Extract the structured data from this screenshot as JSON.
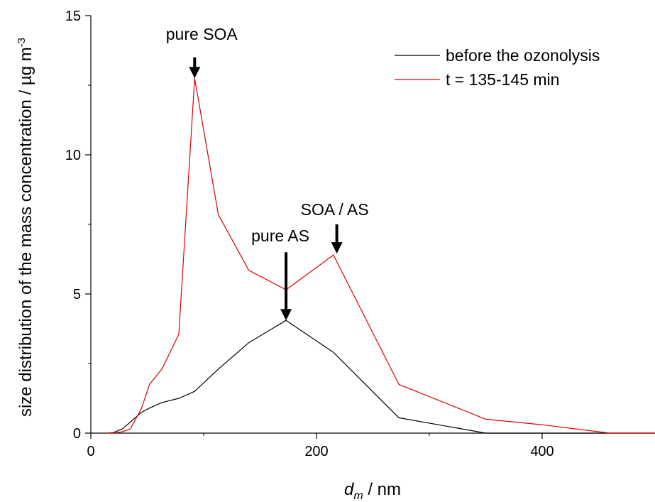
{
  "chart_data": {
    "type": "line",
    "title": "",
    "xlabel": {
      "main": "d",
      "sub": "m",
      "rest": " / nm"
    },
    "ylabel": {
      "main": "size distribution of the mass concentration / µg m",
      "sup": "-3"
    },
    "xlim": [
      0,
      500
    ],
    "ylim": [
      0,
      15
    ],
    "xticks": [
      0,
      200,
      400
    ],
    "yticks": [
      0,
      5,
      10,
      15
    ],
    "grid": false,
    "legend_position": "top-right",
    "series": [
      {
        "name": "before the ozonolysis",
        "color": "#000000",
        "x": [
          15,
          20,
          28,
          35,
          45,
          52,
          63,
          78,
          92,
          113,
          140,
          173,
          215,
          273,
          350,
          400,
          500
        ],
        "y": [
          0,
          0.02,
          0.15,
          0.4,
          0.75,
          0.9,
          1.1,
          1.25,
          1.5,
          2.3,
          3.25,
          4.05,
          2.9,
          0.55,
          0.0,
          0.0,
          0.0
        ]
      },
      {
        "name": "t = 135-145 min",
        "color": "#dd0000",
        "x": [
          15,
          20,
          28,
          35,
          45,
          52,
          63,
          78,
          92,
          113,
          140,
          173,
          215,
          273,
          350,
          400,
          460,
          500
        ],
        "y": [
          0,
          0.0,
          0.05,
          0.15,
          0.9,
          1.75,
          2.3,
          3.55,
          12.75,
          7.85,
          5.85,
          5.15,
          6.4,
          1.75,
          0.5,
          0.3,
          0.0,
          0.0
        ]
      }
    ],
    "annotations": [
      {
        "text": "pure SOA",
        "arrow_x": 92,
        "arrow_from_y": 13.5,
        "arrow_to_y": 12.75
      },
      {
        "text": "pure AS",
        "arrow_x": 173,
        "arrow_from_y": 6.5,
        "arrow_to_y": 4.05
      },
      {
        "text": "SOA / AS",
        "arrow_x": 218,
        "arrow_from_y": 7.5,
        "arrow_to_y": 6.45
      }
    ]
  }
}
